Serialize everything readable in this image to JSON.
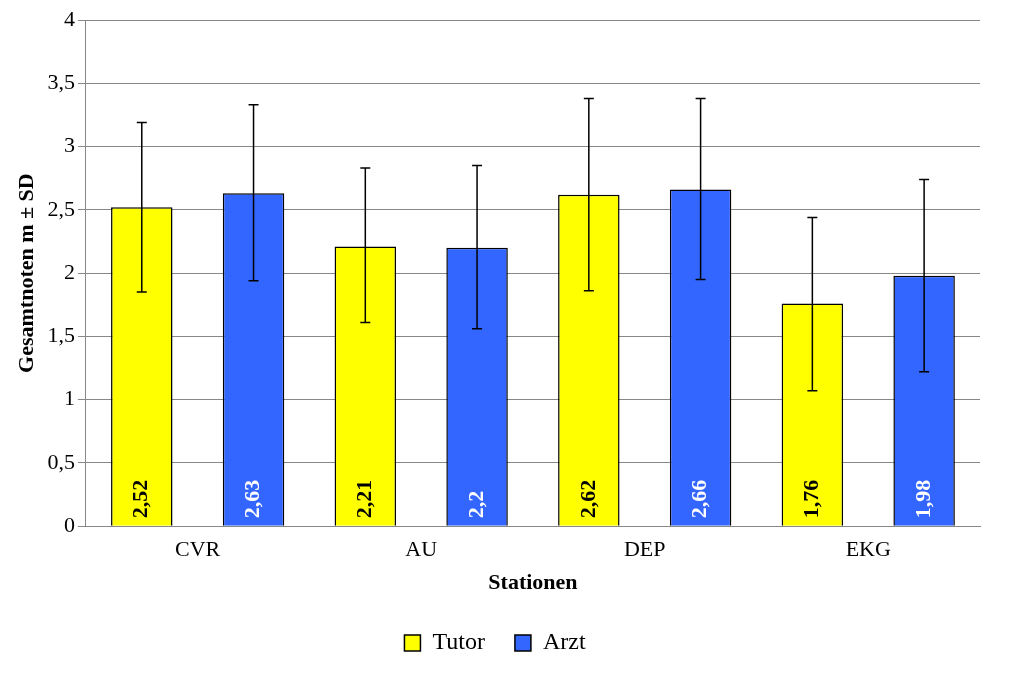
{
  "chart_data": {
    "type": "bar",
    "xlabel": "Stationen",
    "ylabel": "Gesamtnoten m ± SD",
    "categories": [
      "CVR",
      "AU",
      "DEP",
      "EKG"
    ],
    "series": [
      {
        "name": "Tutor",
        "color": "#ffff00",
        "values": [
          2.52,
          2.21,
          2.62,
          1.76
        ],
        "errors": [
          [
            1.85,
            3.19
          ],
          [
            1.61,
            2.83
          ],
          [
            1.86,
            3.38
          ],
          [
            1.07,
            2.44
          ]
        ],
        "value_labels": [
          "2,52",
          "2,21",
          "2,62",
          "1,76"
        ]
      },
      {
        "name": "Arzt",
        "color": "#3366ff",
        "values": [
          2.63,
          2.2,
          2.66,
          1.98
        ],
        "errors": [
          [
            1.94,
            3.33
          ],
          [
            1.56,
            2.85
          ],
          [
            1.95,
            3.38
          ],
          [
            1.22,
            2.74
          ]
        ],
        "value_labels": [
          "2,63",
          "2,2",
          "2,66",
          "1,98"
        ]
      }
    ],
    "ylim": [
      0,
      4
    ],
    "yticks": [
      0,
      {
        "value": 0.5,
        "label": "0,5"
      },
      1,
      {
        "value": 1.5,
        "label": "1,5"
      },
      2,
      {
        "value": 2.5,
        "label": "2,5"
      },
      3,
      {
        "value": 3.5,
        "label": "3,5"
      },
      4
    ],
    "grid": "y",
    "legend": "bottom"
  }
}
